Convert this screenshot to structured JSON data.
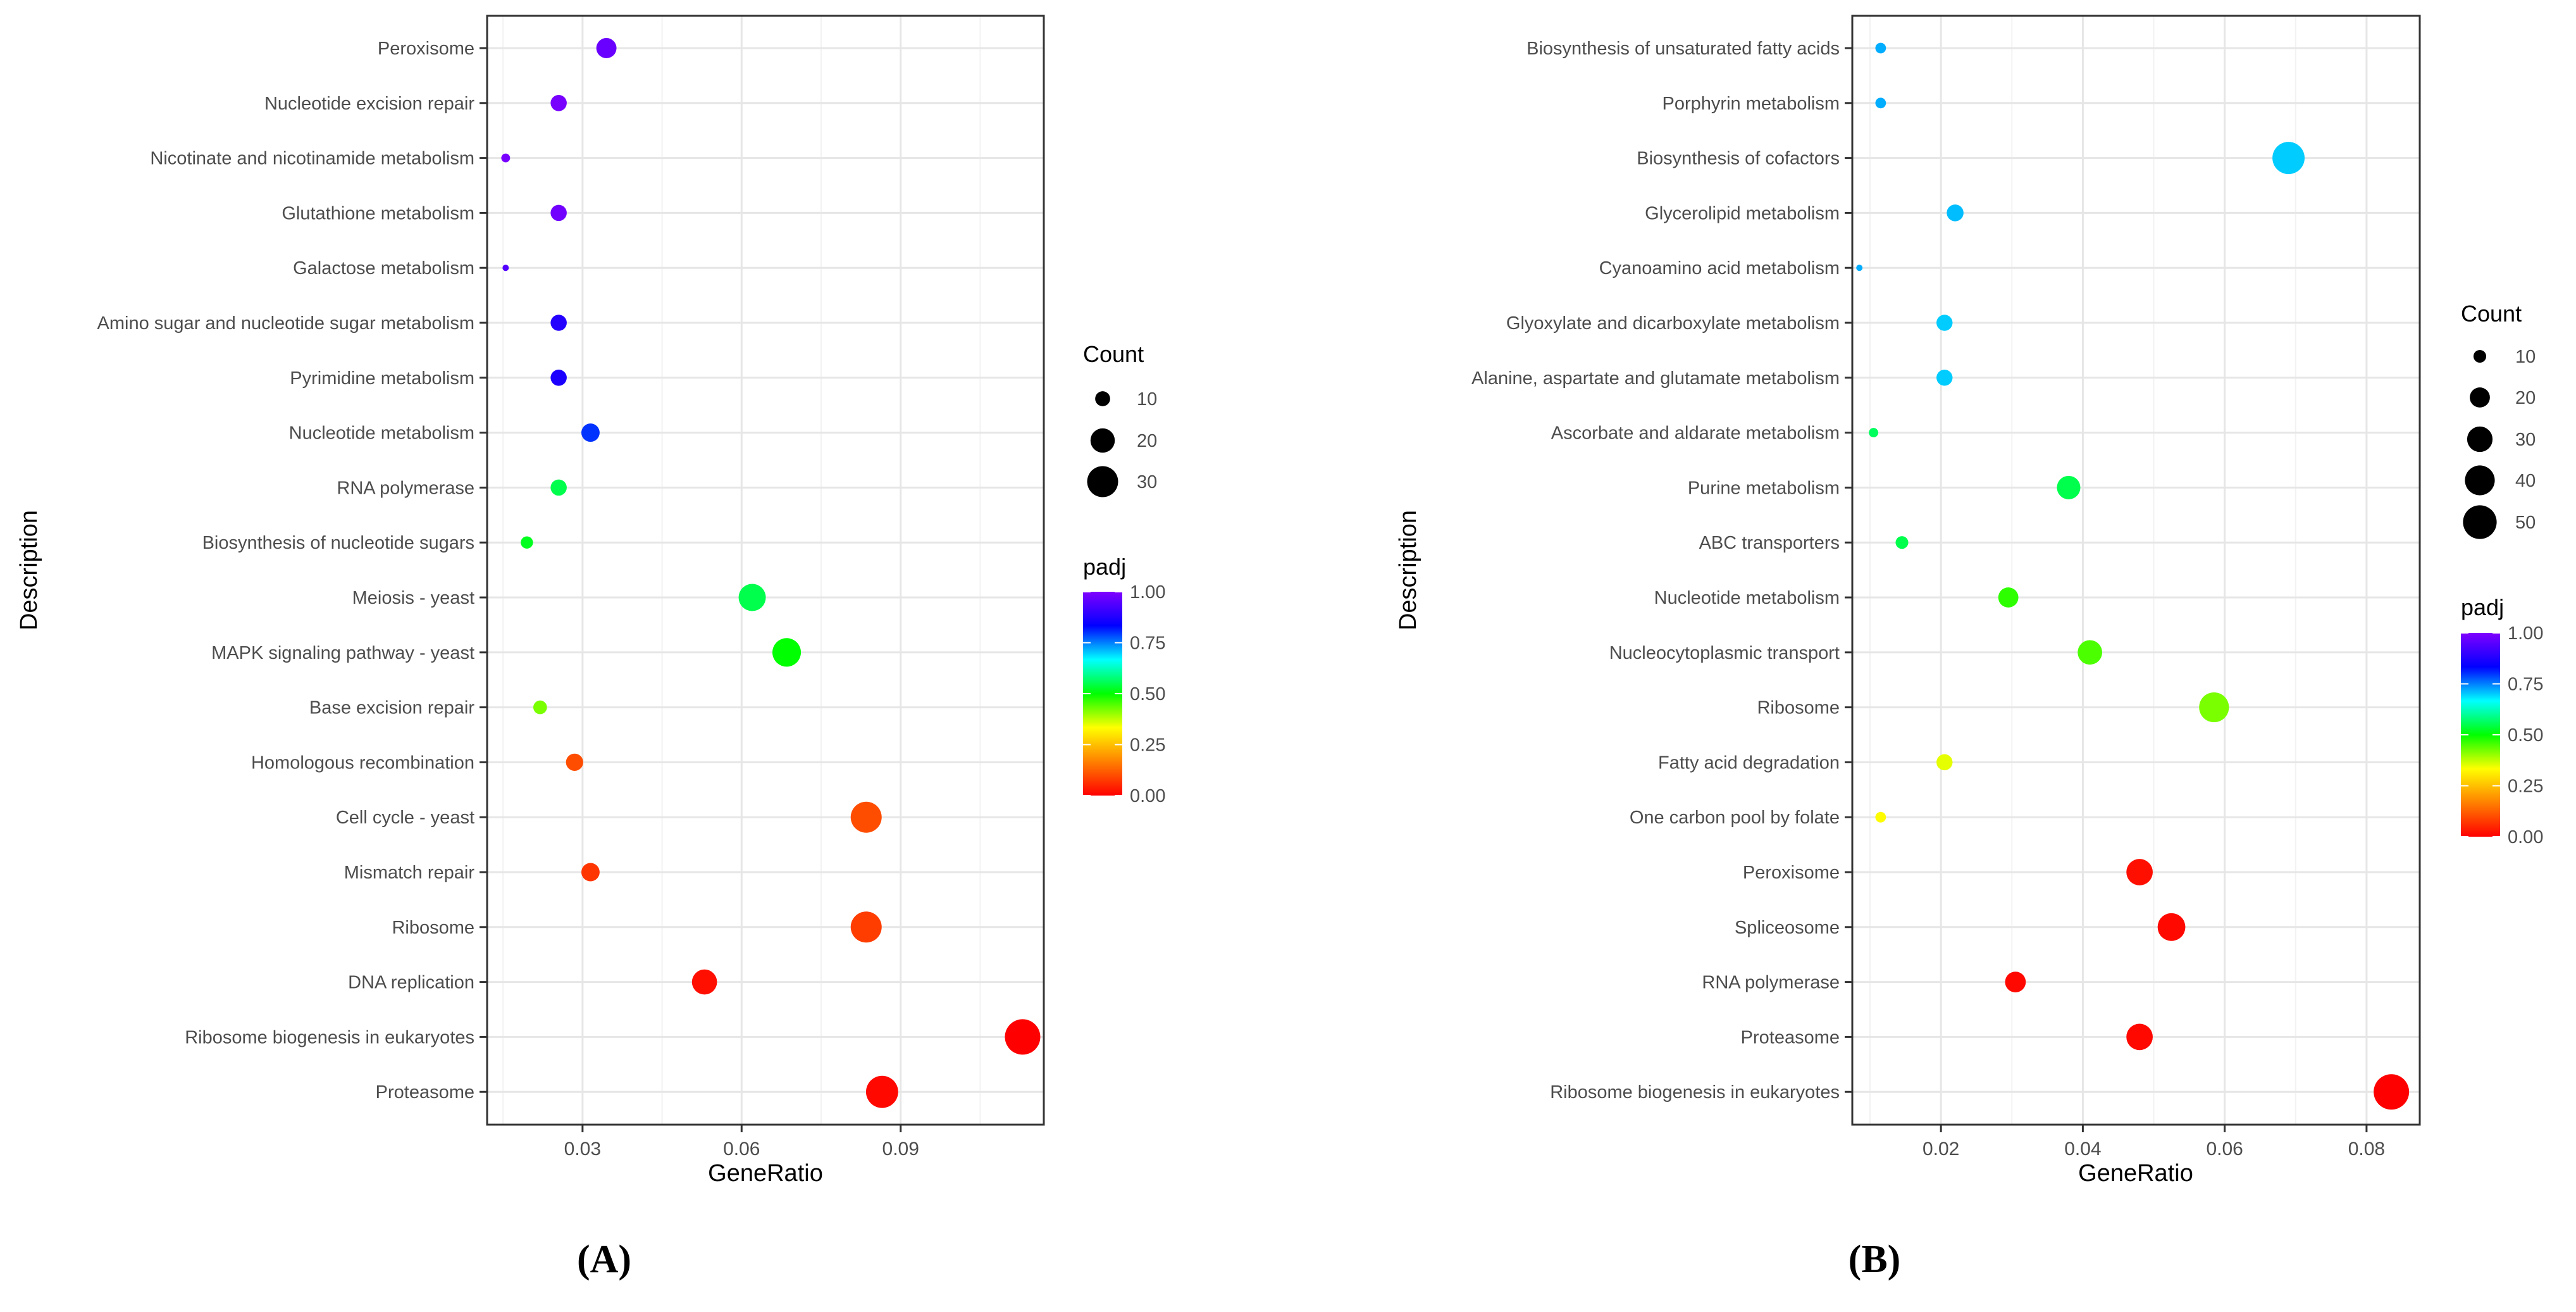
{
  "chart_data": [
    {
      "type": "scatter",
      "panel_label": "(A)",
      "xlabel": "GeneRatio",
      "ylabel": "Description",
      "xlim": [
        0.012,
        0.117
      ],
      "xticks": [
        0.03,
        0.06,
        0.09
      ],
      "xtick_labels": [
        "0.03",
        "0.06",
        "0.09"
      ],
      "grid": true,
      "legend_position": "right",
      "size_legend": {
        "title": "Count",
        "values": [
          10,
          20,
          30
        ],
        "labels": [
          "10",
          "20",
          "30"
        ]
      },
      "color_legend": {
        "title": "padj",
        "range": [
          0,
          1
        ],
        "ticks": [
          0,
          0.25,
          0.5,
          0.75,
          1
        ],
        "tick_labels": [
          "0.00",
          "0.25",
          "0.50",
          "0.75",
          "1.00"
        ]
      },
      "points": [
        {
          "description": "Peroxisome",
          "gene_ratio": 0.0345,
          "count": 15,
          "padj": 0.97
        },
        {
          "description": "Nucleotide excision repair",
          "gene_ratio": 0.0255,
          "count": 11,
          "padj": 0.99
        },
        {
          "description": "Nicotinate and nicotinamide metabolism",
          "gene_ratio": 0.0155,
          "count": 6,
          "padj": 0.99
        },
        {
          "description": "Glutathione metabolism",
          "gene_ratio": 0.0255,
          "count": 11,
          "padj": 0.98
        },
        {
          "description": "Galactose metabolism",
          "gene_ratio": 0.0155,
          "count": 5,
          "padj": 0.94
        },
        {
          "description": "Amino sugar and nucleotide sugar metabolism",
          "gene_ratio": 0.0255,
          "count": 11,
          "padj": 0.88
        },
        {
          "description": "Pyrimidine metabolism",
          "gene_ratio": 0.0255,
          "count": 11,
          "padj": 0.87
        },
        {
          "description": "Nucleotide metabolism",
          "gene_ratio": 0.0315,
          "count": 13,
          "padj": 0.8
        },
        {
          "description": "RNA polymerase",
          "gene_ratio": 0.0255,
          "count": 11,
          "padj": 0.55
        },
        {
          "description": "Biosynthesis of nucleotide sugars",
          "gene_ratio": 0.0195,
          "count": 8,
          "padj": 0.52
        },
        {
          "description": "Meiosis - yeast",
          "gene_ratio": 0.062,
          "count": 24,
          "padj": 0.55
        },
        {
          "description": "MAPK signaling pathway - yeast",
          "gene_ratio": 0.0685,
          "count": 26,
          "padj": 0.5
        },
        {
          "description": "Base excision repair",
          "gene_ratio": 0.022,
          "count": 9,
          "padj": 0.42
        },
        {
          "description": "Homologous recombination",
          "gene_ratio": 0.0285,
          "count": 12,
          "padj": 0.1
        },
        {
          "description": "Cell cycle - yeast",
          "gene_ratio": 0.0835,
          "count": 30,
          "padj": 0.1
        },
        {
          "description": "Mismatch repair",
          "gene_ratio": 0.0315,
          "count": 13,
          "padj": 0.07
        },
        {
          "description": "Ribosome",
          "gene_ratio": 0.0835,
          "count": 30,
          "padj": 0.08
        },
        {
          "description": "DNA replication",
          "gene_ratio": 0.053,
          "count": 21,
          "padj": 0.02
        },
        {
          "description": "Ribosome biogenesis in eukaryotes",
          "gene_ratio": 0.113,
          "count": 38,
          "padj": 0.0
        },
        {
          "description": "Proteasome",
          "gene_ratio": 0.0865,
          "count": 32,
          "padj": 0.01
        }
      ]
    },
    {
      "type": "scatter",
      "panel_label": "(B)",
      "xlabel": "GeneRatio",
      "ylabel": "Description",
      "xlim": [
        0.0075,
        0.0875
      ],
      "xticks": [
        0.02,
        0.04,
        0.06,
        0.08
      ],
      "xtick_labels": [
        "0.02",
        "0.04",
        "0.06",
        "0.08"
      ],
      "grid": true,
      "legend_position": "right",
      "size_legend": {
        "title": "Count",
        "values": [
          10,
          20,
          30,
          40,
          50
        ],
        "labels": [
          "10",
          "20",
          "30",
          "40",
          "50"
        ]
      },
      "color_legend": {
        "title": "padj",
        "range": [
          0,
          1
        ],
        "ticks": [
          0,
          0.25,
          0.5,
          0.75,
          1
        ],
        "tick_labels": [
          "0.00",
          "0.25",
          "0.50",
          "0.75",
          "1.00"
        ]
      },
      "points": [
        {
          "description": "Biosynthesis of unsaturated fatty acids",
          "gene_ratio": 0.0115,
          "count": 8,
          "padj": 0.72
        },
        {
          "description": "Porphyrin metabolism",
          "gene_ratio": 0.0115,
          "count": 8,
          "padj": 0.72
        },
        {
          "description": "Biosynthesis of cofactors",
          "gene_ratio": 0.069,
          "count": 46,
          "padj": 0.7
        },
        {
          "description": "Glycerolipid metabolism",
          "gene_ratio": 0.022,
          "count": 15,
          "padj": 0.71
        },
        {
          "description": "Cyanoamino acid metabolism",
          "gene_ratio": 0.0085,
          "count": 5,
          "padj": 0.72
        },
        {
          "description": "Glyoxylate and dicarboxylate metabolism",
          "gene_ratio": 0.0205,
          "count": 14,
          "padj": 0.7
        },
        {
          "description": "Alanine, aspartate and glutamate metabolism",
          "gene_ratio": 0.0205,
          "count": 14,
          "padj": 0.7
        },
        {
          "description": "Ascorbate and aldarate metabolism",
          "gene_ratio": 0.0105,
          "count": 7,
          "padj": 0.56
        },
        {
          "description": "Purine metabolism",
          "gene_ratio": 0.038,
          "count": 26,
          "padj": 0.55
        },
        {
          "description": "ABC transporters",
          "gene_ratio": 0.0145,
          "count": 10,
          "padj": 0.55
        },
        {
          "description": "Nucleotide metabolism",
          "gene_ratio": 0.0295,
          "count": 20,
          "padj": 0.47
        },
        {
          "description": "Nucleocytoplasmic transport",
          "gene_ratio": 0.041,
          "count": 28,
          "padj": 0.45
        },
        {
          "description": "Ribosome",
          "gene_ratio": 0.0585,
          "count": 40,
          "padj": 0.42
        },
        {
          "description": "Fatty acid degradation",
          "gene_ratio": 0.0205,
          "count": 14,
          "padj": 0.35
        },
        {
          "description": "One carbon pool by folate",
          "gene_ratio": 0.0115,
          "count": 8,
          "padj": 0.33
        },
        {
          "description": "Peroxisome",
          "gene_ratio": 0.048,
          "count": 32,
          "padj": 0.02
        },
        {
          "description": "Spliceosome",
          "gene_ratio": 0.0525,
          "count": 35,
          "padj": 0.01
        },
        {
          "description": "RNA polymerase",
          "gene_ratio": 0.0305,
          "count": 21,
          "padj": 0.01
        },
        {
          "description": "Proteasome",
          "gene_ratio": 0.048,
          "count": 32,
          "padj": 0.01
        },
        {
          "description": "Ribosome biogenesis in eukaryotes",
          "gene_ratio": 0.0835,
          "count": 55,
          "padj": 0.0
        }
      ]
    }
  ]
}
